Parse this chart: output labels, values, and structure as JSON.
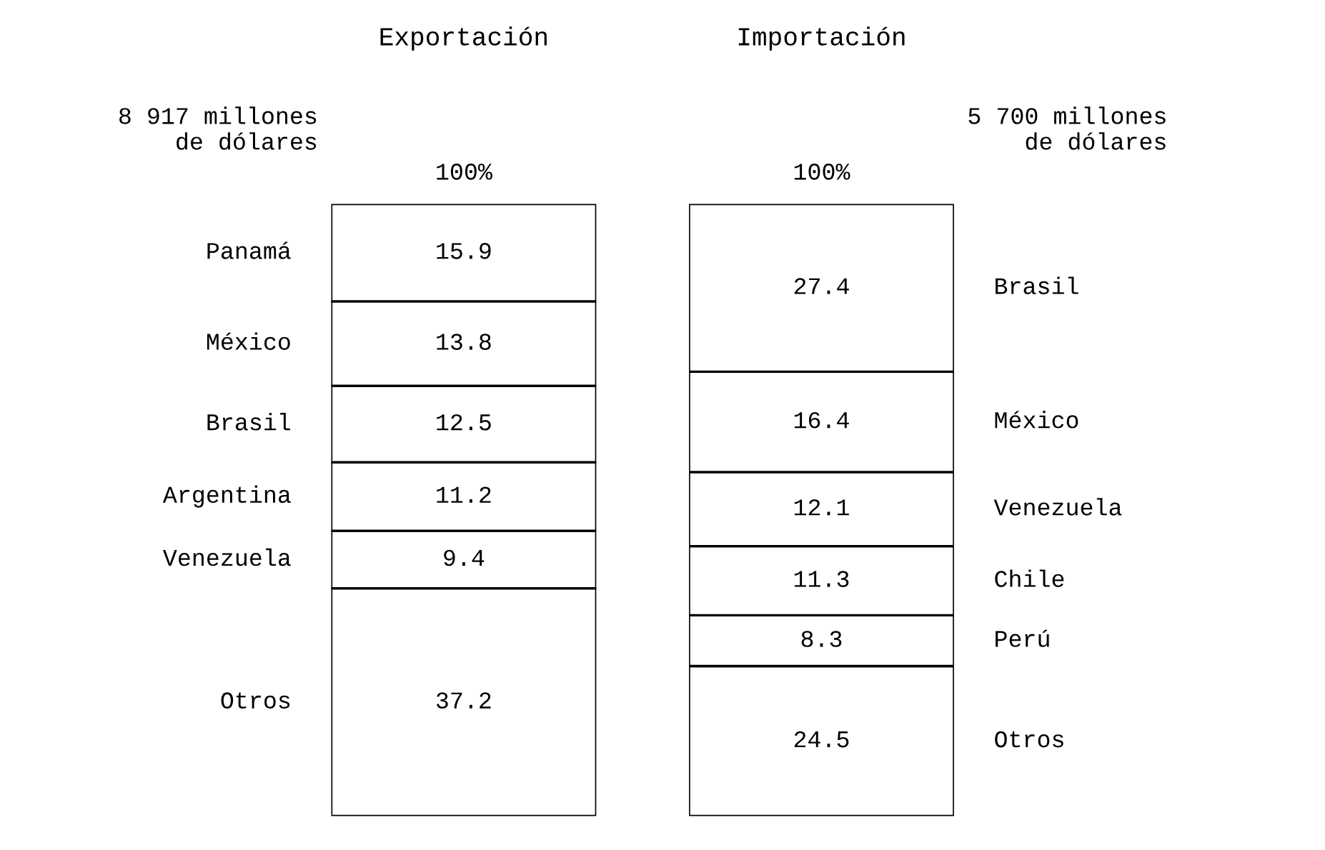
{
  "chart_data": [
    {
      "type": "bar",
      "title": "Exportación",
      "categories": [
        null
      ],
      "stacked": true,
      "data_labels": true,
      "series": [
        {
          "name": "Otros",
          "color": "#ffffff",
          "values": [
            37.2
          ]
        },
        {
          "name": "Venezuela",
          "color": "#ffffff",
          "values": [
            9.4
          ]
        },
        {
          "name": "Argentina",
          "color": "#ffffff",
          "values": [
            11.2
          ]
        },
        {
          "name": "Brasil",
          "color": "#ffffff",
          "values": [
            12.5
          ]
        },
        {
          "name": "México",
          "color": "#ffffff",
          "values": [
            13.8
          ]
        },
        {
          "name": "Panamá",
          "color": "#ffffff",
          "values": [
            15.9
          ]
        }
      ],
      "annotations": [
        "100%",
        "8 917 millones\n    de dólares"
      ]
    },
    {
      "type": "bar",
      "title": "Importación",
      "categories": [
        null
      ],
      "stacked": true,
      "data_labels": true,
      "series": [
        {
          "name": "Otros",
          "color": "#ffffff",
          "values": [
            24.5
          ]
        },
        {
          "name": "Perú",
          "color": "#ffffff",
          "values": [
            8.3
          ]
        },
        {
          "name": "Chile",
          "color": "#ffffff",
          "values": [
            11.3
          ]
        },
        {
          "name": "Venezuela",
          "color": "#ffffff",
          "values": [
            12.1
          ]
        },
        {
          "name": "México",
          "color": "#ffffff",
          "values": [
            16.4
          ]
        },
        {
          "name": "Brasil",
          "color": "#ffffff",
          "values": [
            27.4
          ]
        }
      ],
      "annotations": [
        "100%",
        "5 700 millones\n    de dólares"
      ]
    }
  ]
}
